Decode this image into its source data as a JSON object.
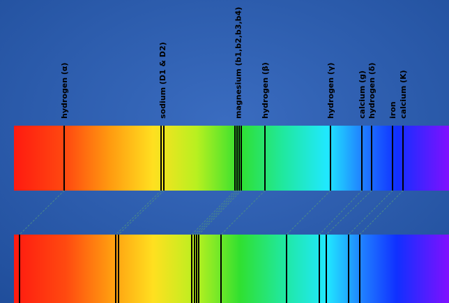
{
  "labels": [
    "hydrogen (α)",
    "sodium (D1 & D2)",
    "magnesium (b1,b2,b3,b4)",
    "hydrogen (β)",
    "hydrogen (γ)",
    "calcium (g)",
    "hydrogen (δ)",
    "iron",
    "calcium (K)"
  ]
}
